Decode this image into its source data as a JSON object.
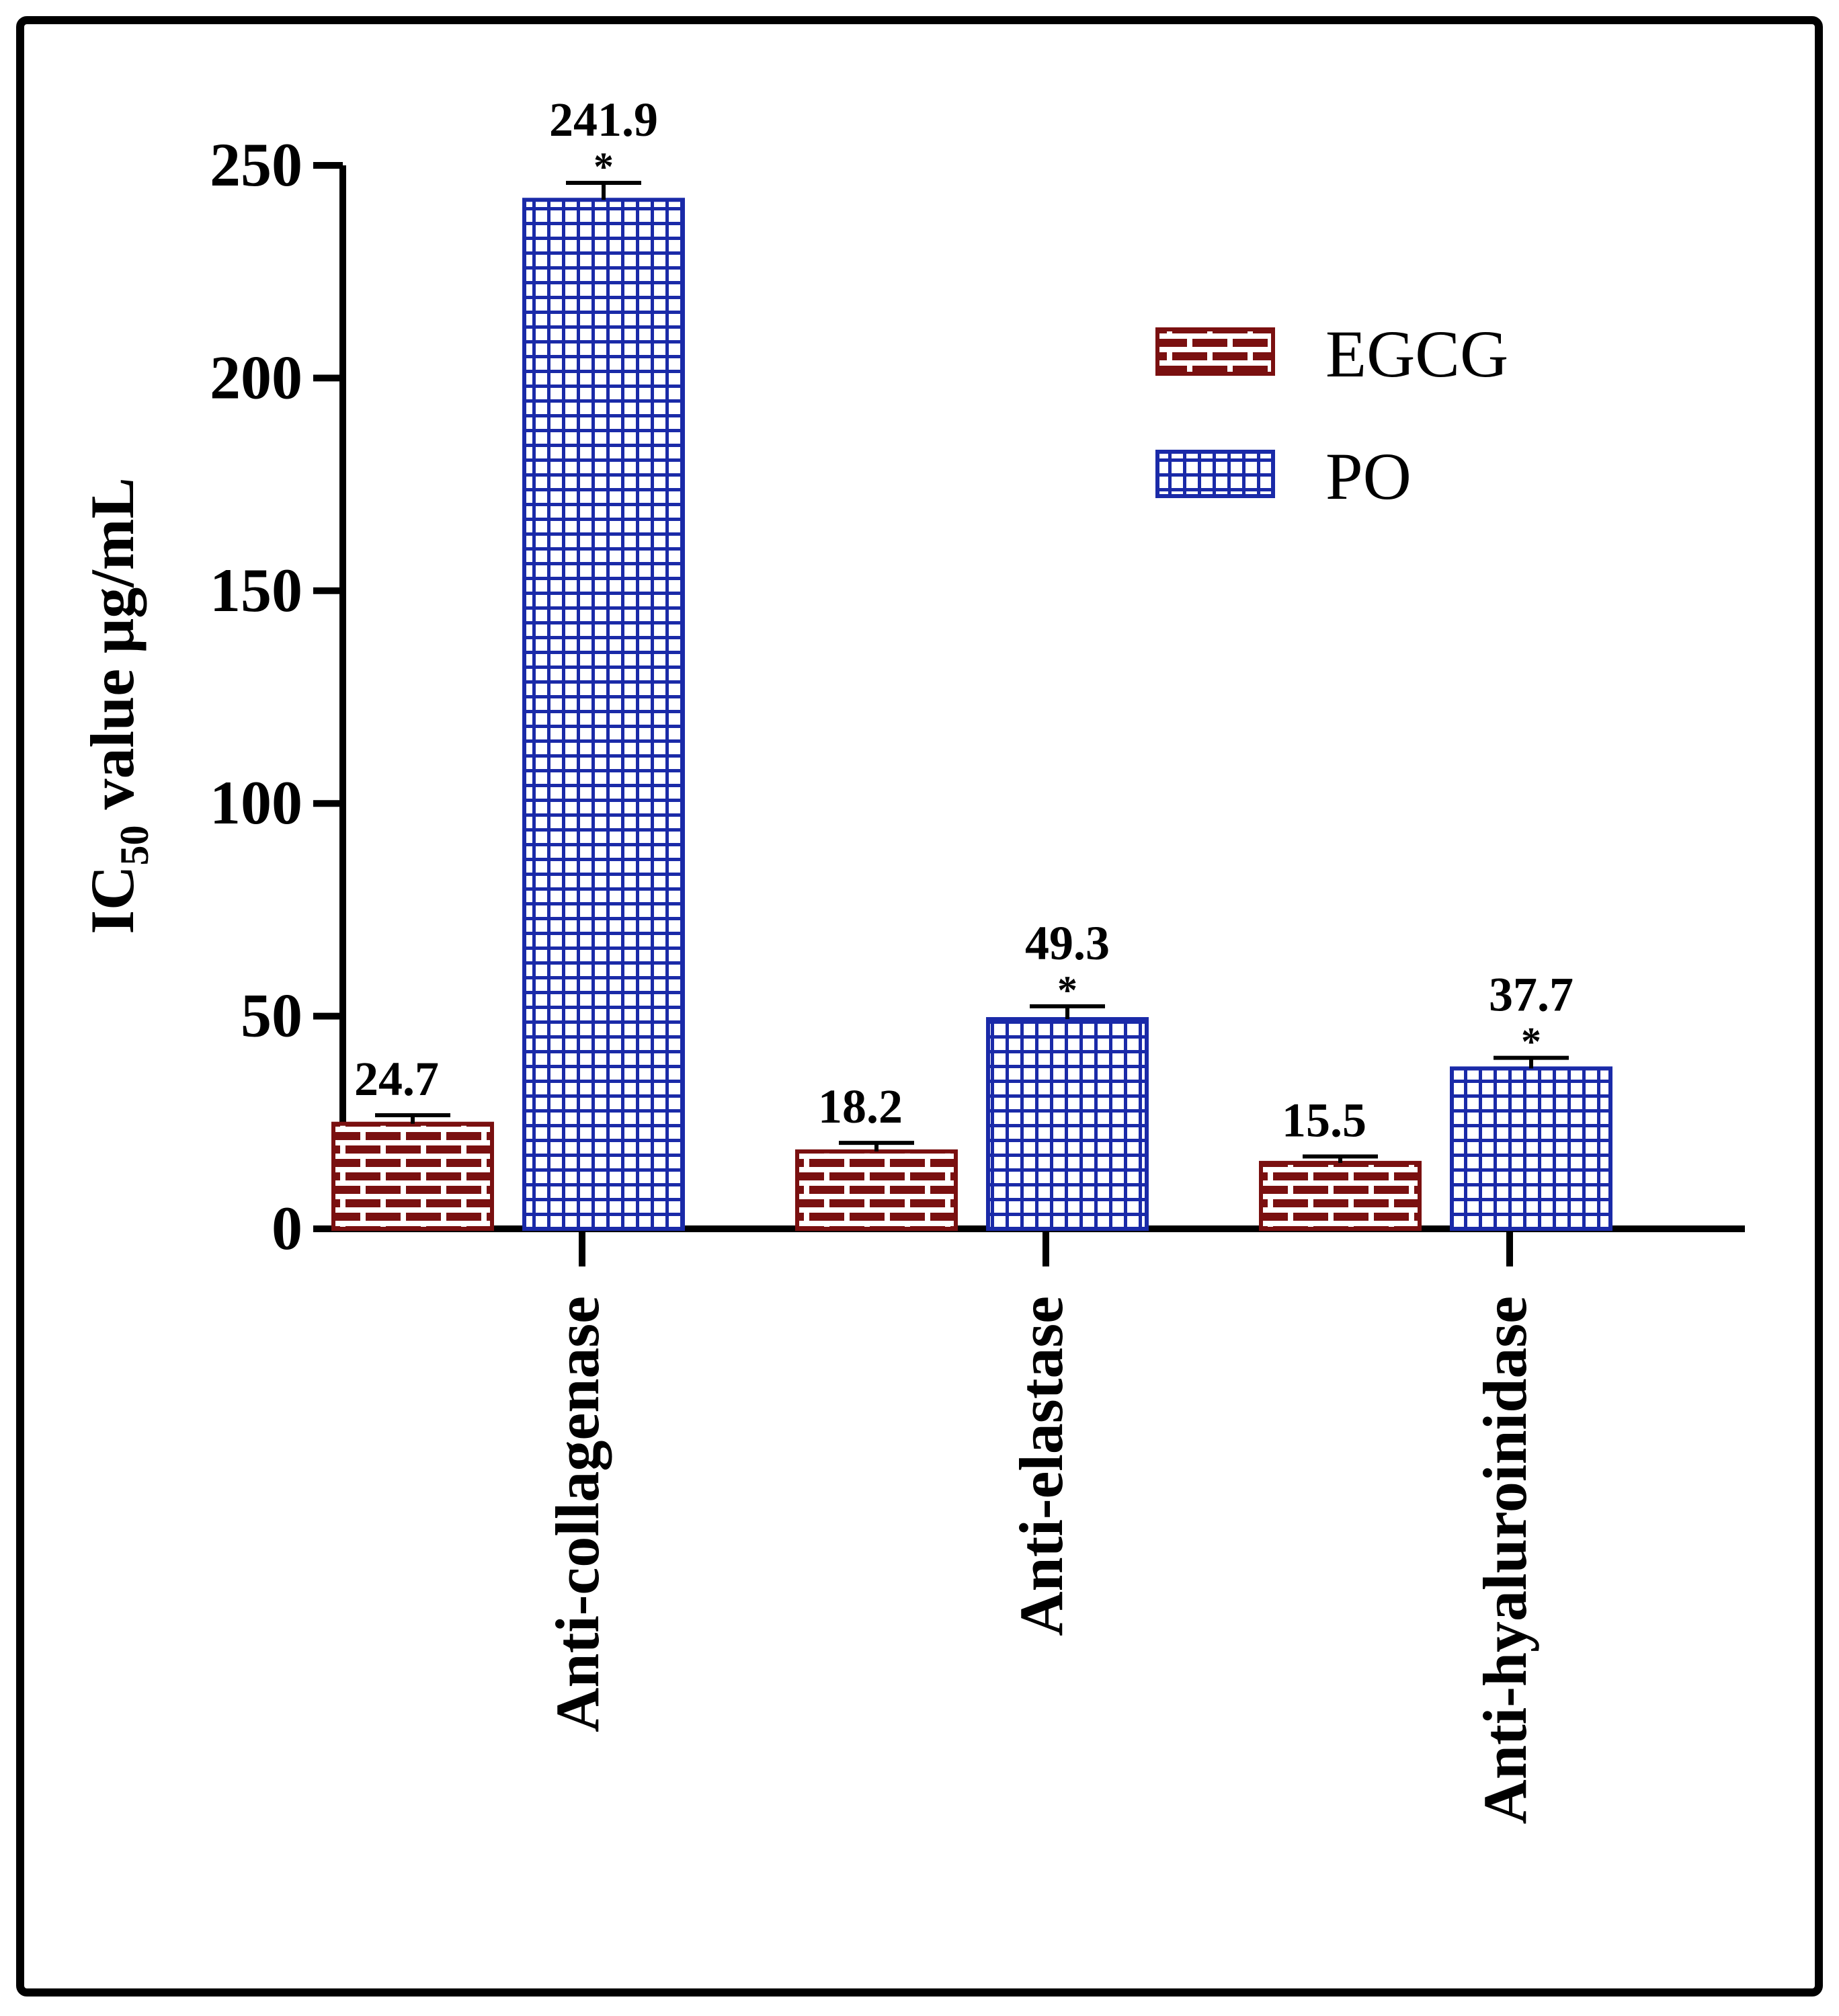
{
  "chart_data": {
    "type": "bar",
    "title": "",
    "xlabel": "",
    "ylabel": {
      "prefix": "IC",
      "subscript": "50",
      "suffix": " value μg/mL"
    },
    "ylim": [
      0,
      250
    ],
    "yticks": [
      "0",
      "50",
      "100",
      "150",
      "200",
      "250"
    ],
    "ytick_values": [
      0,
      50,
      100,
      150,
      200,
      250
    ],
    "categories": [
      "Anti-collagenase",
      "Anti-elastase",
      "Anti-hyaluroinidase"
    ],
    "series": [
      {
        "name": "EGCG",
        "values": [
          24.7,
          18.2,
          15.5
        ],
        "errors": [
          2.0,
          2.0,
          1.5
        ],
        "labels": [
          "24.7",
          "18.2",
          "15.5"
        ],
        "significance": [
          "",
          "",
          ""
        ],
        "color": "#7a1010",
        "pattern": "brick"
      },
      {
        "name": "PO",
        "values": [
          241.9,
          49.3,
          37.7
        ],
        "errors": [
          4.0,
          3.0,
          2.5
        ],
        "labels": [
          "241.9",
          "49.3",
          "37.7"
        ],
        "significance": [
          "*",
          "*",
          "*"
        ],
        "color": "#1a2aa8",
        "pattern": "grid"
      }
    ],
    "legend": {
      "position": "top-right"
    },
    "grid": false
  }
}
